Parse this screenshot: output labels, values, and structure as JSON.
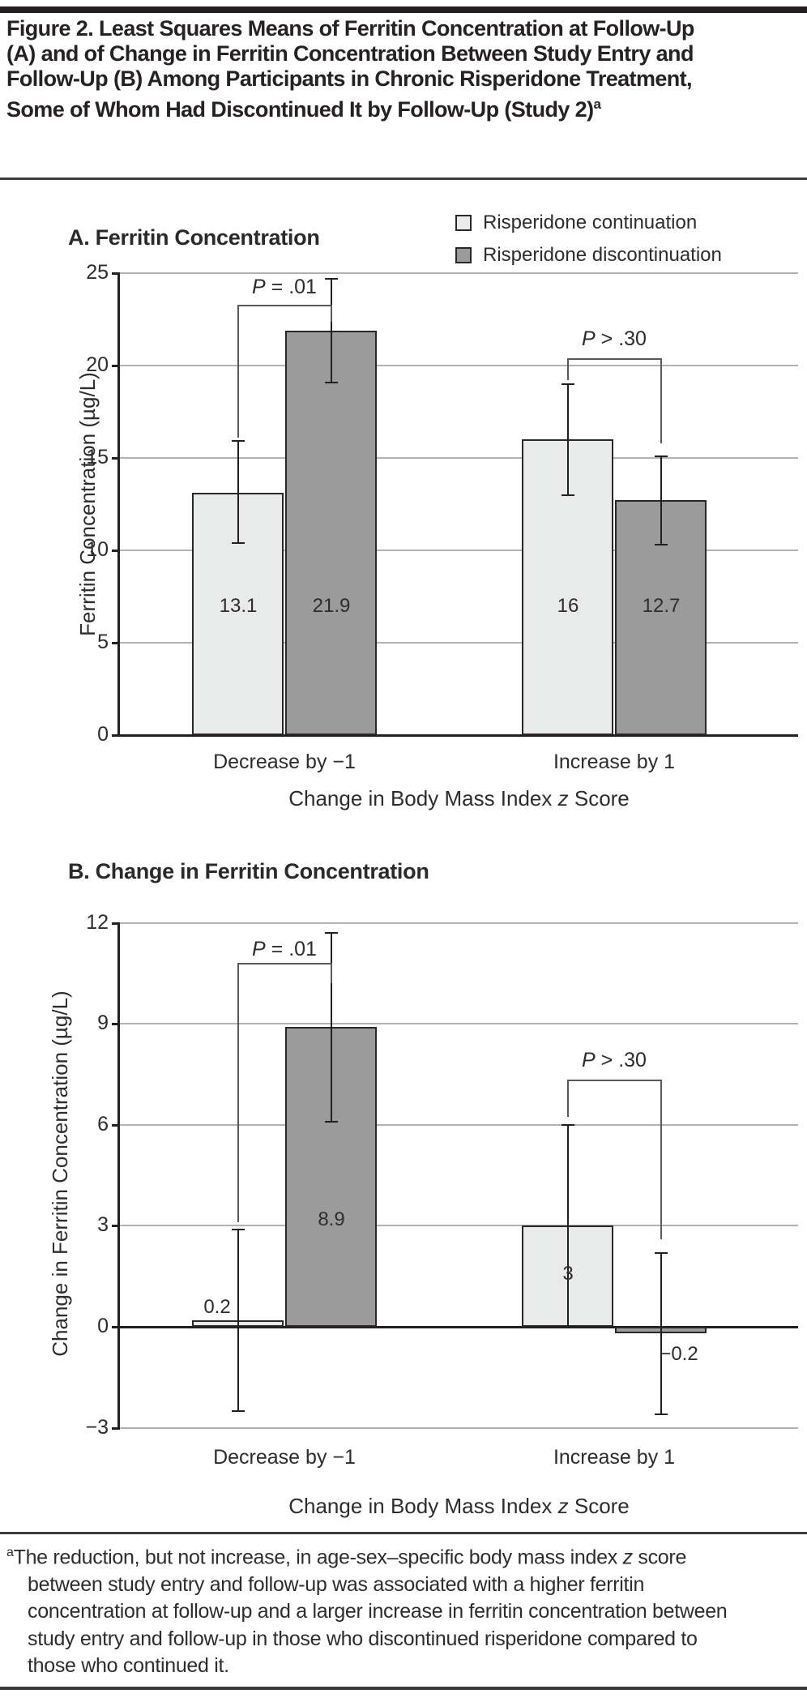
{
  "figure": {
    "title": "Figure 2. Least Squares Means of Ferritin Concentration at Follow-Up (A) and of Change in Ferritin Concentration Between Study Entry and Follow-Up (B) Among Participants in Chronic Risperidone Treatment, Some of Whom Had Discontinued It by Follow-Up (Study 2)",
    "title_superscript": "a"
  },
  "legend": {
    "items": [
      {
        "label": "Risperidone continuation",
        "color": "#e9eaea"
      },
      {
        "label": "Risperidone discontinuation",
        "color": "#9b9b9b"
      }
    ]
  },
  "colors": {
    "continuation_fill": "#e9eaea",
    "discontinuation_fill": "#9b9b9b",
    "bar_border": "#2b2728",
    "axis": "#231f20",
    "gridline": "#b2b2b2",
    "bracket": "#58595b",
    "text": "#2f2c2d"
  },
  "chart_data": [
    {
      "type": "bar",
      "panel_label": "A. Ferritin Concentration",
      "ylabel": "Ferritin Concentration (µg/L)",
      "xlabel": {
        "pre": "Change in Body Mass Index ",
        "italic": "z",
        "post": " Score"
      },
      "ylim": [
        0,
        25
      ],
      "yticks": [
        0,
        5,
        10,
        15,
        20,
        25
      ],
      "ytick_labels": [
        "0",
        "5",
        "10",
        "15",
        "20",
        "25"
      ],
      "grid": true,
      "legend_position": "top-right",
      "categories": [
        "Decrease by −1",
        "Increase by 1"
      ],
      "series": [
        {
          "name": "Risperidone continuation",
          "values": [
            13.1,
            16
          ],
          "value_labels": [
            "13.1",
            "16"
          ],
          "error_low": [
            10.4,
            13.0
          ],
          "error_high": [
            15.9,
            19.0
          ],
          "label_pos": [
            [
              0,
              7.0
            ],
            [
              0,
              7.0
            ]
          ]
        },
        {
          "name": "Risperidone discontinuation",
          "values": [
            21.9,
            12.7
          ],
          "value_labels": [
            "21.9",
            "12.7"
          ],
          "error_low": [
            19.1,
            10.3
          ],
          "error_high": [
            24.7,
            15.1
          ],
          "label_pos": [
            [
              0,
              7.0
            ],
            [
              0,
              7.0
            ]
          ]
        }
      ],
      "annotations": [
        {
          "group": 0,
          "label_italic": "P",
          "label_rest": " = .01",
          "y_bar": 23.3,
          "left_end": 16.1,
          "right_end": 22.4,
          "label_y": 24.2
        },
        {
          "group": 1,
          "label_italic": "P",
          "label_rest": " > .30",
          "y_bar": 20.4,
          "left_end": 19.2,
          "right_end": 15.8,
          "label_y": 21.4
        }
      ]
    },
    {
      "type": "bar",
      "panel_label": "B. Change in Ferritin Concentration",
      "ylabel": "Change in Ferritin Concentration (µg/L)",
      "xlabel": {
        "pre": "Change in Body Mass Index ",
        "italic": "z",
        "post": " Score"
      },
      "ylim": [
        -3,
        12
      ],
      "yticks": [
        -3,
        0,
        3,
        6,
        9,
        12
      ],
      "ytick_labels": [
        "−3",
        "0",
        "3",
        "6",
        "9",
        "12"
      ],
      "grid": true,
      "legend_position": "none",
      "categories": [
        "Decrease by −1",
        "Increase by 1"
      ],
      "series": [
        {
          "name": "Risperidone continuation",
          "values": [
            0.2,
            3
          ],
          "value_labels": [
            "0.2",
            "3"
          ],
          "error_low": [
            -2.5,
            0
          ],
          "error_high": [
            2.9,
            6.0
          ],
          "label_pos": [
            [
              -26,
              0.6
            ],
            [
              0,
              1.6
            ]
          ]
        },
        {
          "name": "Risperidone discontinuation",
          "values": [
            8.9,
            -0.2
          ],
          "value_labels": [
            "8.9",
            "−0.2"
          ],
          "error_low": [
            6.1,
            -2.6
          ],
          "error_high": [
            11.7,
            2.2
          ],
          "label_pos": [
            [
              0,
              3.2
            ],
            [
              22,
              -0.8
            ]
          ]
        }
      ],
      "annotations": [
        {
          "group": 0,
          "label_italic": "P",
          "label_rest": " = .01",
          "y_bar": 10.8,
          "left_end": 3.1,
          "right_end": 10.2,
          "label_y": 11.2
        },
        {
          "group": 1,
          "label_italic": "P",
          "label_rest": " > .30",
          "y_bar": 7.35,
          "left_end": 6.25,
          "right_end": 2.6,
          "label_y": 7.9
        }
      ]
    }
  ],
  "footnote": {
    "marker": "a",
    "text_before_z": "The reduction, but not increase, in age-sex–specific body mass index ",
    "italic": "z",
    "text_after_z": " score between study entry and follow-up was associated with a higher ferritin concentration at follow-up and a larger increase in ferritin concentration between study entry and follow-up in those who discontinued risperidone compared to those who continued it."
  }
}
